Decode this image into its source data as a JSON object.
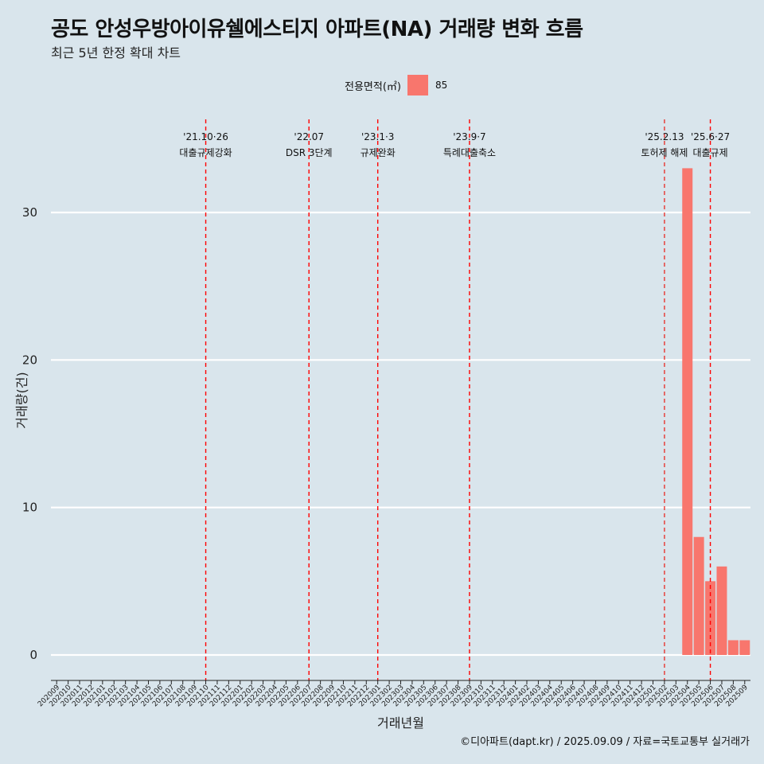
{
  "header": {
    "title": "공도 안성우방아이유쉘에스티지 아파트(NA) 거래량 변화 흐름",
    "subtitle": "최근 5년 한정 확대 차트"
  },
  "legend": {
    "title": "전용면적(㎡)",
    "entries": [
      {
        "label": "85",
        "color": "#f8766d"
      }
    ]
  },
  "caption": "©디아파트(dapt.kr) / 2025.09.09 / 자료=국토교통부 실거래가",
  "chart_data": {
    "type": "bar",
    "xlabel": "거래년월",
    "ylabel": "거래량(건)",
    "ylim": [
      0,
      33
    ],
    "yticks": [
      0,
      10,
      20,
      30
    ],
    "grid": "horizontal",
    "legend_position": "top",
    "categories": [
      "202009",
      "202010",
      "202011",
      "202012",
      "202101",
      "202102",
      "202103",
      "202104",
      "202105",
      "202106",
      "202107",
      "202108",
      "202109",
      "202110",
      "202111",
      "202112",
      "202201",
      "202202",
      "202203",
      "202204",
      "202205",
      "202206",
      "202207",
      "202208",
      "202209",
      "202210",
      "202211",
      "202212",
      "202301",
      "202302",
      "202303",
      "202304",
      "202305",
      "202306",
      "202307",
      "202308",
      "202309",
      "202310",
      "202311",
      "202312",
      "202401",
      "202402",
      "202403",
      "202404",
      "202405",
      "202406",
      "202407",
      "202408",
      "202409",
      "202410",
      "202411",
      "202412",
      "202501",
      "202502",
      "202503",
      "202504",
      "202505",
      "202506",
      "202507",
      "202508",
      "202509"
    ],
    "series": [
      {
        "name": "85",
        "color": "#f8766d",
        "points": [
          {
            "x": "202504",
            "y": 33
          },
          {
            "x": "202505",
            "y": 8
          },
          {
            "x": "202506",
            "y": 5
          },
          {
            "x": "202507",
            "y": 6
          },
          {
            "x": "202508",
            "y": 1
          },
          {
            "x": "202509",
            "y": 1
          }
        ]
      }
    ],
    "annotations": [
      {
        "at": "202110",
        "line1": "'21.10·26",
        "line2": "대출규제강화",
        "color": "#ff0000"
      },
      {
        "at": "202207",
        "line1": "'22.07",
        "line2": "DSR 3단계",
        "color": "#ff0000"
      },
      {
        "at": "202301",
        "line1": "'23.1·3",
        "line2": "규제완화",
        "color": "#ff0000"
      },
      {
        "at": "202309",
        "line1": "'23.9·7",
        "line2": "특례대출축소",
        "color": "#ff0000"
      },
      {
        "at": "202502",
        "line1": "'25.2.13",
        "line2": "토허제 해제",
        "color": "#e8362f"
      },
      {
        "at": "202506",
        "line1": "'25.6·27",
        "line2": "대출규제",
        "color": "#ff0000"
      }
    ]
  }
}
